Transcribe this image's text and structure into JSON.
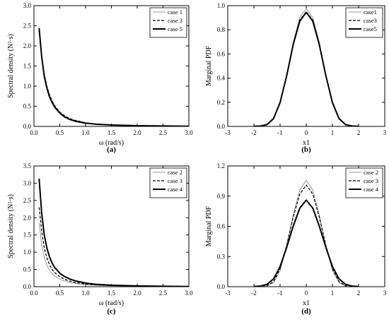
{
  "chart_data": [
    {
      "type": "line",
      "panel_label": "(a)",
      "xlabel": "ω (rad/s)",
      "ylabel": "Spectral density  (N²·s)",
      "xlim": [
        0,
        3.0
      ],
      "ylim": [
        0,
        3.0
      ],
      "xticks": [
        "0.0",
        "0.5",
        "1.0",
        "1.5",
        "2.0",
        "2.5",
        "3.0"
      ],
      "yticks": [
        "0.0",
        "0.5",
        "1.0",
        "1.5",
        "2.0",
        "2.5",
        "3.0"
      ],
      "legend_position": "top-right",
      "x": [
        0.1,
        0.15,
        0.2,
        0.25,
        0.3,
        0.35,
        0.4,
        0.5,
        0.6,
        0.7,
        0.8,
        1.0,
        1.2,
        1.5,
        2.0,
        2.5,
        3.0
      ],
      "series": [
        {
          "name": "case 1",
          "color": "#999999",
          "dash": "solid",
          "width": 1,
          "values": [
            2.42,
            1.78,
            1.28,
            0.98,
            0.76,
            0.61,
            0.49,
            0.33,
            0.23,
            0.17,
            0.13,
            0.08,
            0.055,
            0.035,
            0.018,
            0.01,
            0.006
          ]
        },
        {
          "name": "case 3",
          "color": "#000000",
          "dash": "dashed",
          "width": 1.2,
          "values": [
            2.38,
            1.74,
            1.3,
            1.0,
            0.79,
            0.64,
            0.52,
            0.36,
            0.26,
            0.19,
            0.15,
            0.09,
            0.06,
            0.038,
            0.02,
            0.011,
            0.006
          ]
        },
        {
          "name": "case 5",
          "color": "#000000",
          "dash": "solid",
          "width": 2,
          "values": [
            2.44,
            1.72,
            1.24,
            0.95,
            0.74,
            0.6,
            0.48,
            0.33,
            0.23,
            0.17,
            0.13,
            0.08,
            0.055,
            0.035,
            0.018,
            0.01,
            0.006
          ]
        }
      ]
    },
    {
      "type": "line",
      "panel_label": "(b)",
      "xlabel": "x1",
      "ylabel": "Marginal PDF",
      "xlim": [
        -3,
        3
      ],
      "ylim": [
        0,
        1.0
      ],
      "xticks": [
        "-3",
        "-2",
        "-1",
        "0",
        "1",
        "2",
        "3"
      ],
      "yticks": [
        "0.0",
        "0.2",
        "0.4",
        "0.6",
        "0.8",
        "1.0"
      ],
      "legend_position": "top-right",
      "x": [
        -2.0,
        -1.75,
        -1.5,
        -1.25,
        -1.0,
        -0.75,
        -0.5,
        -0.25,
        0.0,
        0.25,
        0.5,
        0.75,
        1.0,
        1.25,
        1.5,
        1.75,
        2.0
      ],
      "series": [
        {
          "name": "case1",
          "color": "#999999",
          "dash": "solid",
          "width": 1,
          "values": [
            0.0,
            0.002,
            0.012,
            0.058,
            0.188,
            0.417,
            0.695,
            0.902,
            0.975,
            0.902,
            0.695,
            0.417,
            0.188,
            0.058,
            0.012,
            0.002,
            0.0
          ]
        },
        {
          "name": "case3",
          "color": "#000000",
          "dash": "dashed",
          "width": 1.2,
          "values": [
            0.0,
            0.002,
            0.013,
            0.062,
            0.195,
            0.42,
            0.685,
            0.88,
            0.95,
            0.88,
            0.685,
            0.42,
            0.195,
            0.062,
            0.013,
            0.002,
            0.0
          ]
        },
        {
          "name": "case5",
          "color": "#000000",
          "dash": "solid",
          "width": 2,
          "values": [
            0.001,
            0.003,
            0.015,
            0.066,
            0.198,
            0.418,
            0.676,
            0.87,
            0.945,
            0.87,
            0.676,
            0.418,
            0.198,
            0.066,
            0.015,
            0.003,
            0.001
          ]
        }
      ]
    },
    {
      "type": "line",
      "panel_label": "(c)",
      "xlabel": "ω (rad/s)",
      "ylabel": "Spectral density  (N²·s)",
      "xlim": [
        0,
        3.0
      ],
      "ylim": [
        0,
        3.5
      ],
      "xticks": [
        "0.0",
        "0.5",
        "1.0",
        "1.5",
        "2.0",
        "2.5",
        "3.0"
      ],
      "yticks": [
        "0.0",
        "0.5",
        "1.0",
        "1.5",
        "2.0",
        "2.5",
        "3.0",
        "3.5"
      ],
      "legend_position": "top-right",
      "x": [
        0.1,
        0.15,
        0.2,
        0.25,
        0.3,
        0.35,
        0.4,
        0.5,
        0.6,
        0.7,
        0.8,
        1.0,
        1.2,
        1.5,
        2.0,
        2.5,
        3.0
      ],
      "series": [
        {
          "name": "case 2",
          "color": "#999999",
          "dash": "solid",
          "width": 1,
          "values": [
            1.85,
            1.2,
            0.85,
            0.62,
            0.48,
            0.38,
            0.31,
            0.22,
            0.16,
            0.12,
            0.095,
            0.06,
            0.042,
            0.027,
            0.014,
            0.008,
            0.005
          ]
        },
        {
          "name": "case 3",
          "color": "#000000",
          "dash": "dashed",
          "width": 1.2,
          "values": [
            2.3,
            1.6,
            1.12,
            0.83,
            0.64,
            0.5,
            0.41,
            0.29,
            0.21,
            0.16,
            0.12,
            0.077,
            0.052,
            0.033,
            0.017,
            0.009,
            0.005
          ]
        },
        {
          "name": "case 4",
          "color": "#000000",
          "dash": "solid",
          "width": 2,
          "values": [
            3.13,
            2.12,
            1.5,
            1.12,
            0.87,
            0.69,
            0.56,
            0.39,
            0.29,
            0.22,
            0.17,
            0.105,
            0.07,
            0.044,
            0.022,
            0.012,
            0.007
          ]
        }
      ]
    },
    {
      "type": "line",
      "panel_label": "(d)",
      "xlabel": "x1",
      "ylabel": "Marginal PDF",
      "xlim": [
        -3,
        3
      ],
      "ylim": [
        0,
        1.2
      ],
      "xticks": [
        "-3",
        "-2",
        "-1",
        "0",
        "1",
        "2",
        "3"
      ],
      "yticks": [
        "0.0",
        "0.3",
        "0.6",
        "0.9",
        "1.2"
      ],
      "legend_position": "top-right",
      "x": [
        -2.0,
        -1.75,
        -1.5,
        -1.25,
        -1.0,
        -0.75,
        -0.5,
        -0.25,
        0.0,
        0.25,
        0.5,
        0.75,
        1.0,
        1.25,
        1.5,
        1.75,
        2.0
      ],
      "series": [
        {
          "name": "case 2",
          "color": "#999999",
          "dash": "solid",
          "width": 1,
          "values": [
            0.0,
            0.001,
            0.006,
            0.04,
            0.16,
            0.4,
            0.71,
            0.96,
            1.06,
            0.96,
            0.71,
            0.4,
            0.16,
            0.04,
            0.006,
            0.001,
            0.0
          ]
        },
        {
          "name": "case 3",
          "color": "#000000",
          "dash": "dashed",
          "width": 1.2,
          "values": [
            0.0,
            0.002,
            0.01,
            0.052,
            0.18,
            0.41,
            0.69,
            0.92,
            1.01,
            0.92,
            0.69,
            0.41,
            0.18,
            0.052,
            0.01,
            0.002,
            0.0
          ]
        },
        {
          "name": "case 4",
          "color": "#000000",
          "dash": "solid",
          "width": 2,
          "values": [
            0.002,
            0.006,
            0.024,
            0.078,
            0.2,
            0.39,
            0.6,
            0.78,
            0.86,
            0.78,
            0.6,
            0.39,
            0.2,
            0.078,
            0.024,
            0.006,
            0.002
          ]
        }
      ]
    }
  ]
}
